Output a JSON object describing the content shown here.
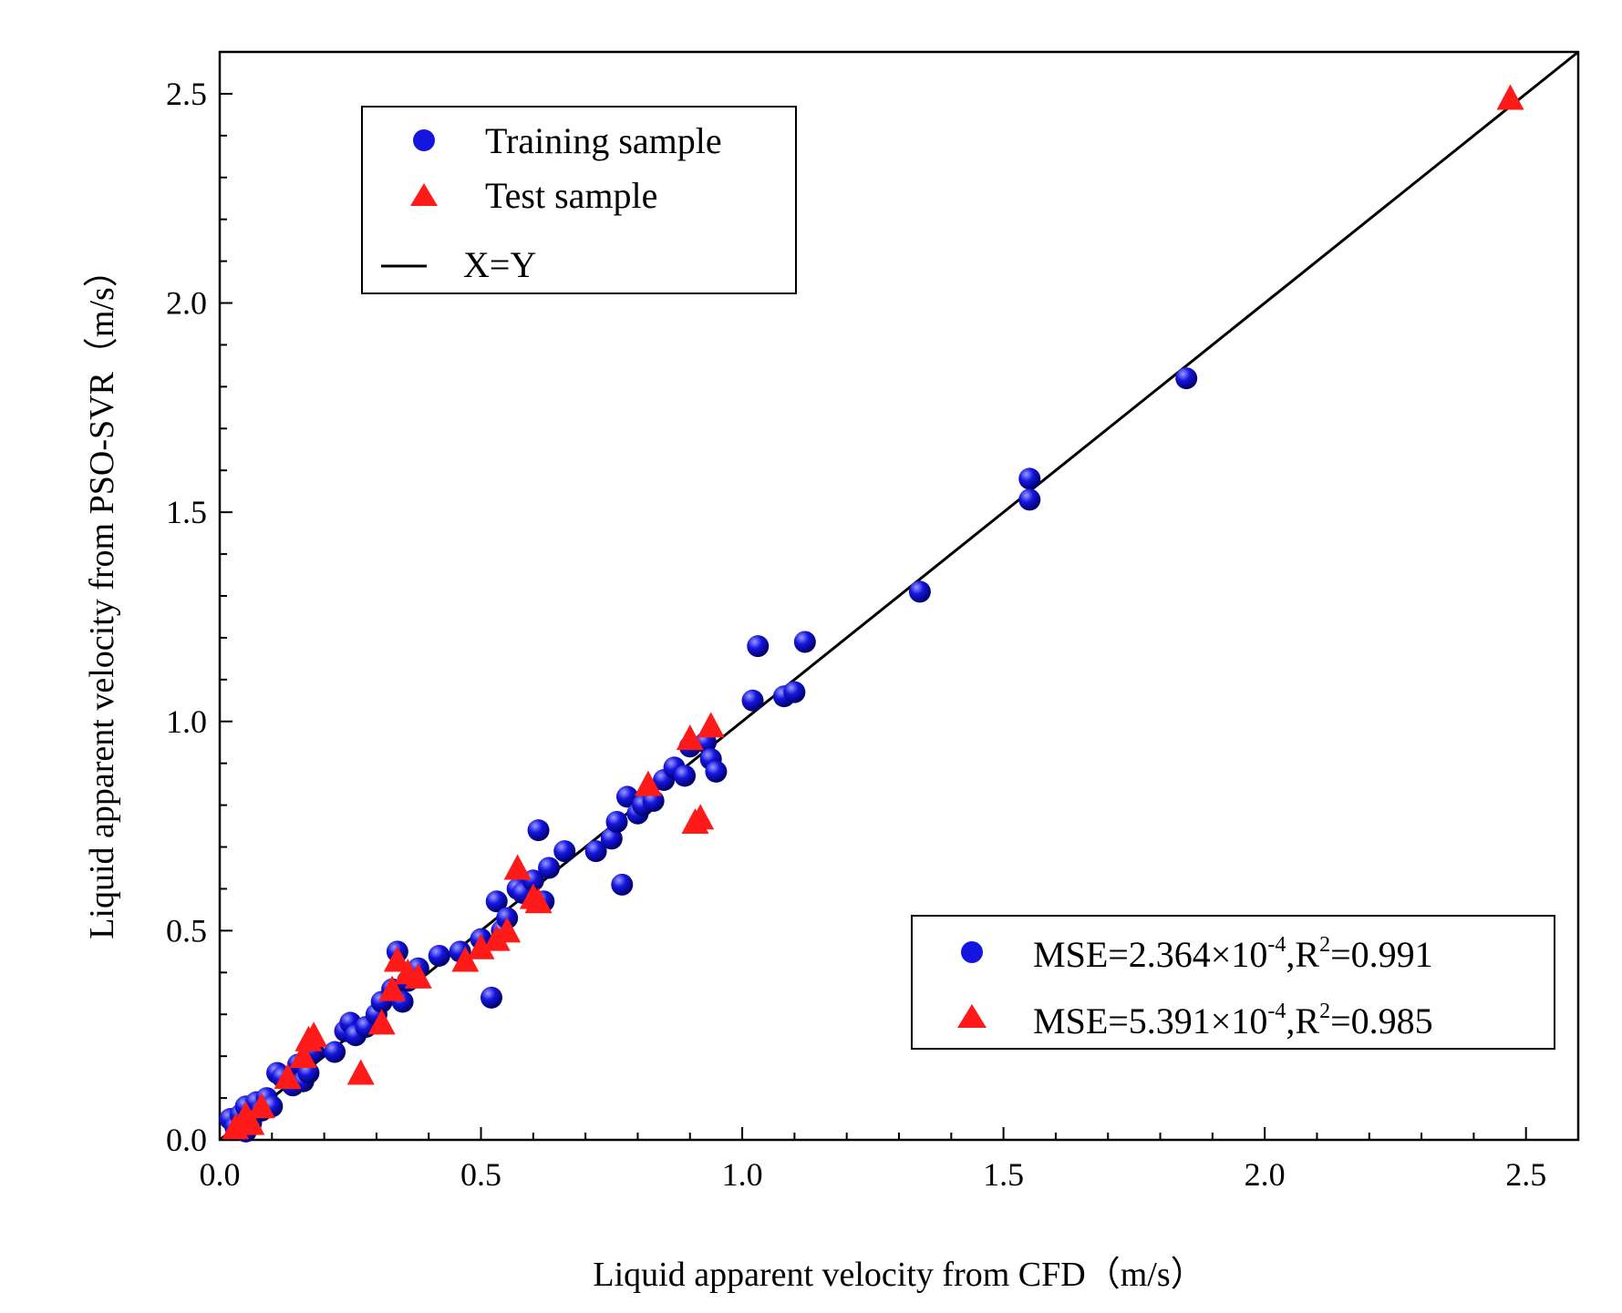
{
  "chart_data": {
    "type": "scatter",
    "title": "",
    "xlabel": "Liquid apparent velocity from CFD（m/s）",
    "ylabel": "Liquid apparent velocity from PSO-SVR（m/s）",
    "xlim": [
      0,
      2.6
    ],
    "ylim": [
      0,
      2.6
    ],
    "xticks": [
      "0.0",
      "0.5",
      "1.0",
      "1.5",
      "2.0",
      "2.5"
    ],
    "yticks": [
      "0.0",
      "0.5",
      "1.0",
      "1.5",
      "2.0",
      "2.5"
    ],
    "colors": {
      "training": "#1515e0",
      "test": "#ff1a1a",
      "line": "#000000"
    },
    "legend": {
      "placement": "top-left",
      "entries": [
        "Training sample",
        "Test sample",
        "X=Y"
      ]
    },
    "metrics": {
      "placement": "bottom-right",
      "training": {
        "mse_mantissa": "MSE=2.364×10",
        "mse_exp": "-4",
        "r2_prefix": ",R",
        "r2_exp": "2",
        "r2_value": "=0.991"
      },
      "test": {
        "mse_mantissa": "MSE=5.391×10",
        "mse_exp": "-4",
        "r2_prefix": ",R",
        "r2_exp": "2",
        "r2_value": "=0.985"
      }
    },
    "series": [
      {
        "name": "Training sample",
        "marker": "circle",
        "x": [
          0.02,
          0.03,
          0.04,
          0.05,
          0.05,
          0.06,
          0.07,
          0.08,
          0.09,
          0.1,
          0.11,
          0.12,
          0.14,
          0.15,
          0.16,
          0.17,
          0.18,
          0.22,
          0.24,
          0.25,
          0.26,
          0.28,
          0.3,
          0.31,
          0.33,
          0.34,
          0.35,
          0.36,
          0.38,
          0.42,
          0.46,
          0.5,
          0.52,
          0.53,
          0.54,
          0.55,
          0.57,
          0.58,
          0.6,
          0.61,
          0.62,
          0.63,
          0.66,
          0.72,
          0.75,
          0.76,
          0.77,
          0.78,
          0.8,
          0.81,
          0.83,
          0.85,
          0.87,
          0.89,
          0.9,
          0.93,
          0.94,
          0.95,
          1.02,
          1.03,
          1.08,
          1.1,
          1.12,
          1.34,
          1.55,
          1.55,
          1.85
        ],
        "y": [
          0.05,
          0.03,
          0.06,
          0.08,
          0.02,
          0.04,
          0.09,
          0.07,
          0.1,
          0.08,
          0.16,
          0.15,
          0.13,
          0.18,
          0.14,
          0.16,
          0.21,
          0.21,
          0.26,
          0.28,
          0.25,
          0.27,
          0.3,
          0.33,
          0.36,
          0.45,
          0.33,
          0.38,
          0.41,
          0.44,
          0.45,
          0.48,
          0.34,
          0.57,
          0.5,
          0.53,
          0.6,
          0.59,
          0.62,
          0.74,
          0.57,
          0.65,
          0.69,
          0.69,
          0.72,
          0.76,
          0.61,
          0.82,
          0.78,
          0.8,
          0.81,
          0.86,
          0.89,
          0.87,
          0.94,
          0.95,
          0.91,
          0.88,
          1.05,
          1.18,
          1.06,
          1.07,
          1.19,
          1.31,
          1.58,
          1.53,
          1.82
        ]
      },
      {
        "name": "Test sample",
        "marker": "triangle",
        "x": [
          0.03,
          0.05,
          0.06,
          0.08,
          0.13,
          0.16,
          0.17,
          0.18,
          0.27,
          0.31,
          0.33,
          0.34,
          0.36,
          0.38,
          0.47,
          0.5,
          0.53,
          0.55,
          0.57,
          0.6,
          0.61,
          0.82,
          0.9,
          0.91,
          0.92,
          0.94,
          2.47
        ],
        "y": [
          0.03,
          0.06,
          0.04,
          0.08,
          0.15,
          0.2,
          0.24,
          0.25,
          0.16,
          0.28,
          0.36,
          0.43,
          0.4,
          0.39,
          0.43,
          0.46,
          0.48,
          0.5,
          0.65,
          0.58,
          0.57,
          0.85,
          0.96,
          0.76,
          0.77,
          0.99,
          2.49
        ]
      }
    ]
  }
}
